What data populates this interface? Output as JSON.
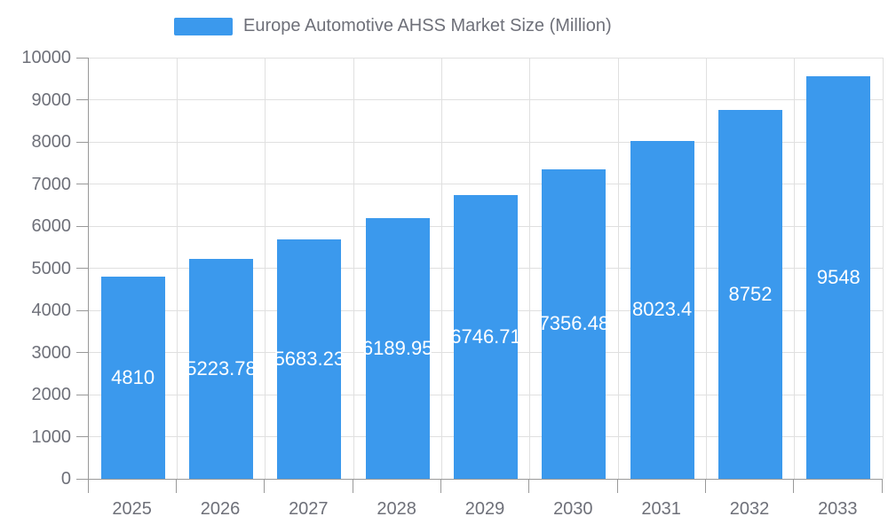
{
  "legend": {
    "label": "Europe Automotive AHSS Market Size (Million)"
  },
  "chart_data": {
    "type": "bar",
    "title": "Europe Automotive AHSS Market Size (Million)",
    "legend_position": "top",
    "legend_entries": [
      "Europe Automotive AHSS Market Size (Million)"
    ],
    "xlabel": "",
    "ylabel": "",
    "categories": [
      "2025",
      "2026",
      "2027",
      "2028",
      "2029",
      "2030",
      "2031",
      "2032",
      "2033"
    ],
    "series": [
      {
        "name": "Europe Automotive AHSS Market Size (Million)",
        "values": [
          4810,
          5223.78,
          5683.23,
          6189.95,
          6746.71,
          7356.48,
          8023.4,
          8752,
          9548
        ]
      }
    ],
    "value_labels": [
      "4810",
      "5223.78",
      "5683.23",
      "6189.95",
      "6746.71",
      "7356.48",
      "8023.4",
      "8752",
      "9548"
    ],
    "ylim": [
      0,
      10000
    ],
    "ytick_step": 1000,
    "grid": true,
    "colors": {
      "bar": "#3B99ED",
      "bar_label": "#FFFFFF",
      "axis_line": "#999999",
      "grid_line": "#E0E0E0",
      "tick_text": "#6E7079",
      "legend_text": "#6E7079",
      "background": "#FFFFFF"
    }
  }
}
